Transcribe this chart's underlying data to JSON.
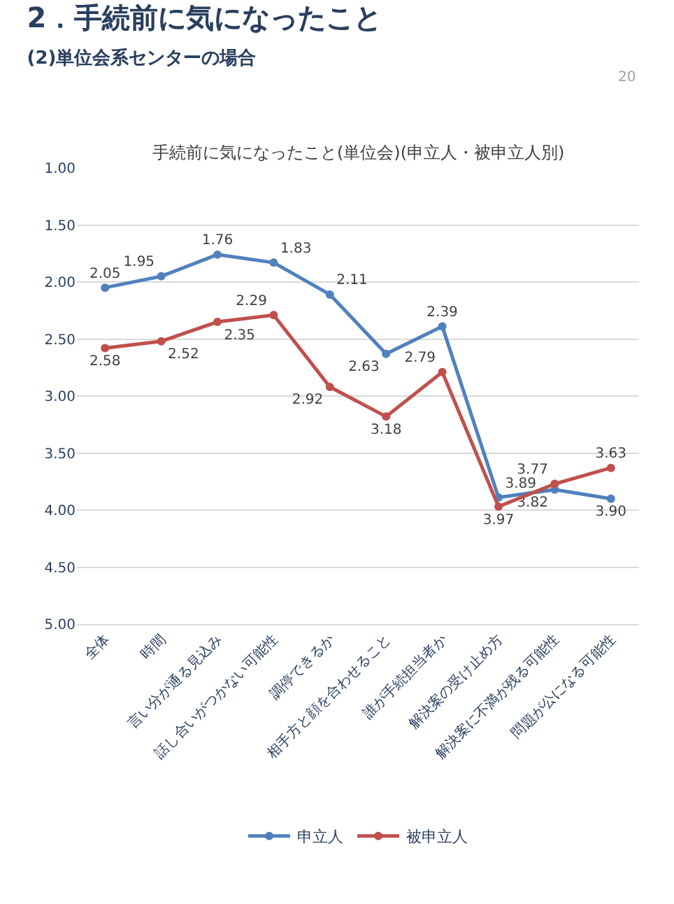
{
  "chart_data": {
    "type": "line",
    "title": "2．手続前に気になったこと",
    "subtitle": "(2)単位会系センターの場合",
    "annotations": [
      "手続前に気になったこと(単位会)(申立人・被申立人別)",
      "20"
    ],
    "categories": [
      "全体",
      "時間",
      "言い分が通る見込み",
      "話し合いがつかない可能性",
      "調停できるか",
      "相手方と顔を合わせること",
      "誰が手続担当者か",
      "解決案の受け止め方",
      "解決案に不満が残る可能性",
      "問題が公になる可能性"
    ],
    "series": [
      {
        "name": "申立人",
        "color": "#4f81bd",
        "values": [
          2.05,
          1.95,
          1.76,
          1.83,
          2.11,
          2.63,
          2.39,
          3.89,
          3.82,
          3.9
        ],
        "value_labels": [
          "2.05",
          "1.95",
          "1.76",
          "1.83",
          "2.11",
          "2.63",
          "2.39",
          "3.89",
          "3.82",
          "3.90"
        ]
      },
      {
        "name": "被申立人",
        "color": "#c0504d",
        "values": [
          2.58,
          2.52,
          2.35,
          2.29,
          2.92,
          3.18,
          2.79,
          3.97,
          3.77,
          3.63
        ],
        "value_labels": [
          "2.58",
          "2.52",
          "2.35",
          "2.29",
          "2.92",
          "3.18",
          "2.79",
          "3.97",
          "3.77",
          "3.63"
        ]
      }
    ],
    "ylim": [
      5.0,
      1.0
    ],
    "yticks": [
      {
        "value": 1.0,
        "label": "1.00"
      },
      {
        "value": 1.5,
        "label": "1.50"
      },
      {
        "value": 2.0,
        "label": "2.00"
      },
      {
        "value": 2.5,
        "label": "2.50"
      },
      {
        "value": 3.0,
        "label": "3.00"
      },
      {
        "value": 3.5,
        "label": "3.50"
      },
      {
        "value": 4.0,
        "label": "4.00"
      },
      {
        "value": 4.5,
        "label": "4.50"
      },
      {
        "value": 5.0,
        "label": "5.00"
      }
    ],
    "grid": "y",
    "legend": "bottom",
    "marker": "circle",
    "line_style": "solid"
  }
}
